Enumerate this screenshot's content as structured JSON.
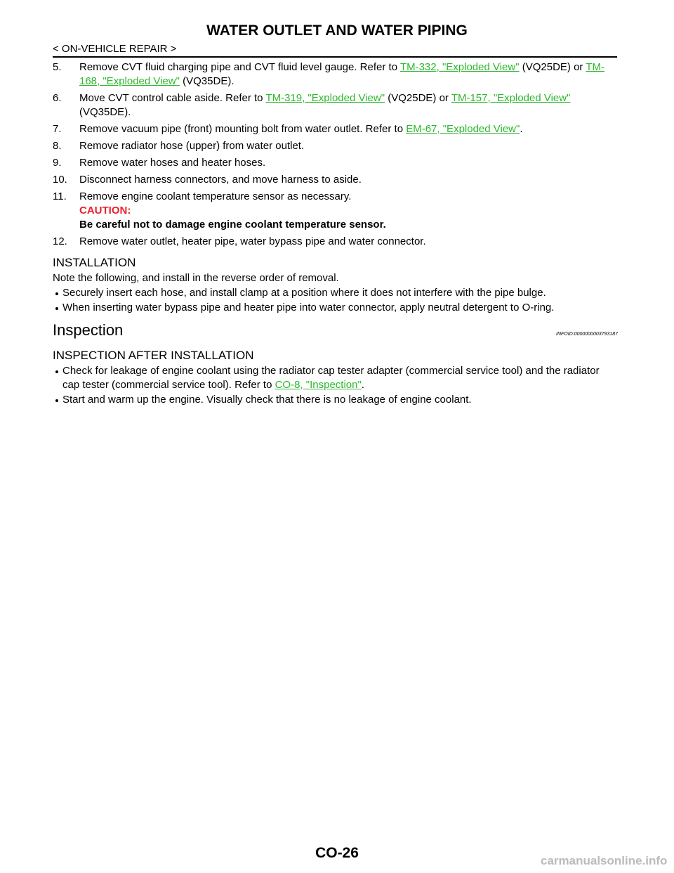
{
  "header": {
    "title": "WATER OUTLET AND WATER PIPING",
    "section": "< ON-VEHICLE REPAIR >"
  },
  "removal_steps": [
    {
      "number": "5.",
      "parts": [
        {
          "text": "Remove CVT fluid charging pipe and CVT fluid level gauge. Refer to "
        },
        {
          "link": "TM-332, \"Exploded View\""
        },
        {
          "text": " (VQ25DE) or "
        },
        {
          "link": "TM-168, \"Exploded View\""
        },
        {
          "text": " (VQ35DE)."
        }
      ]
    },
    {
      "number": "6.",
      "parts": [
        {
          "text": "Move CVT control cable aside. Refer to "
        },
        {
          "link": "TM-319, \"Exploded View\""
        },
        {
          "text": " (VQ25DE) or "
        },
        {
          "link": "TM-157, \"Exploded View\""
        },
        {
          "text": " (VQ35DE)."
        }
      ]
    },
    {
      "number": "7.",
      "parts": [
        {
          "text": "Remove vacuum pipe (front) mounting bolt from water outlet. Refer to "
        },
        {
          "link": "EM-67, \"Exploded View\""
        },
        {
          "text": "."
        }
      ]
    },
    {
      "number": "8.",
      "parts": [
        {
          "text": "Remove radiator hose (upper) from water outlet."
        }
      ]
    },
    {
      "number": "9.",
      "parts": [
        {
          "text": "Remove water hoses and heater hoses."
        }
      ]
    },
    {
      "number": "10.",
      "parts": [
        {
          "text": "Disconnect harness connectors, and move harness to aside."
        }
      ]
    },
    {
      "number": "11.",
      "parts": [
        {
          "text": "Remove engine coolant temperature sensor as necessary."
        }
      ],
      "caution_label": "CAUTION:",
      "caution_text": "Be careful not to damage engine coolant temperature sensor."
    },
    {
      "number": "12.",
      "parts": [
        {
          "text": "Remove water outlet, heater pipe, water bypass pipe and water connector."
        }
      ]
    }
  ],
  "installation": {
    "heading": "INSTALLATION",
    "note": "Note the following, and install in the reverse order of removal.",
    "bullets": [
      "Securely insert each hose, and install clamp at a position where it does not interfere with the pipe bulge.",
      "When inserting water bypass pipe and heater pipe into water connector, apply neutral detergent to O-ring."
    ]
  },
  "inspection": {
    "heading": "Inspection",
    "info_id": "INFOID:0000000003793187",
    "subheading": "INSPECTION AFTER INSTALLATION",
    "bullets": [
      [
        {
          "text": "Check for leakage of engine coolant using the radiator cap tester adapter (commercial service tool) and the radiator cap tester (commercial service tool). Refer to "
        },
        {
          "link": "CO-8, \"Inspection\""
        },
        {
          "text": "."
        }
      ],
      [
        {
          "text": "Start and warm up the engine. Visually check that there is no leakage of engine coolant."
        }
      ]
    ]
  },
  "footer": {
    "page": "CO-26",
    "watermark": "carmanualsonline.info"
  }
}
